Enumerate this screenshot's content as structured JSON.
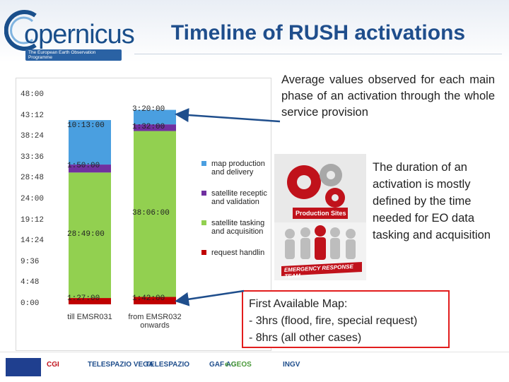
{
  "header": {
    "logo_text": "opernicus",
    "logo_subtitle": "The European Earth Observation Programme",
    "title": "Timeline of RUSH activations"
  },
  "chart_data": {
    "type": "bar",
    "stacked": true,
    "categories": [
      "till EMSR031",
      "from EMSR032 onwards"
    ],
    "ytick_labels": [
      "48:00",
      "43:12",
      "38:24",
      "33:36",
      "28:48",
      "24:00",
      "19:12",
      "14:24",
      "9:36",
      "4:48",
      "0:00"
    ],
    "ylim": [
      0,
      48
    ],
    "series": [
      {
        "name": "request handlin",
        "color": "#c00000",
        "values": [
          1.45,
          1.7
        ],
        "labels": [
          "1:27:00",
          "1:42:00"
        ]
      },
      {
        "name": "satellite tasking and acquisition",
        "color": "#92d050",
        "values": [
          28.82,
          38.1
        ],
        "labels": [
          "28:49:00",
          "38:06:00"
        ]
      },
      {
        "name": "satellite receptic and validation",
        "color": "#7030a0",
        "values": [
          1.83,
          1.53
        ],
        "labels": [
          "1:50:00",
          "1:32:00"
        ]
      },
      {
        "name": "map production and delivery",
        "color": "#4a9fe0",
        "values": [
          10.22,
          3.33
        ],
        "labels": [
          "10:13:00",
          "3:20:00"
        ]
      }
    ],
    "legend_order": [
      "map production and delivery",
      "satellite receptic and validation",
      "satellite tasking and acquisition",
      "request handlin"
    ]
  },
  "right": {
    "average_text": "Average values observed for each main phase of an activation through the whole service provision",
    "duration_text": "The duration of an activation is mostly defined by the time needed for EO data tasking and acquisition",
    "production_label": "Production Sites",
    "emergency_label": "EMERGENCY RESPONSE TEAM",
    "map_title": "First Available Map:",
    "map_line1": "- 3hrs (flood, fire, special request)",
    "map_line2": "- 8hrs (all other cases)"
  },
  "footer": {
    "logos": [
      "CGI",
      "TELESPAZIO VEGA",
      "TELESPAZIO",
      "GAF AG",
      "e-GEOS",
      "INGV"
    ]
  }
}
